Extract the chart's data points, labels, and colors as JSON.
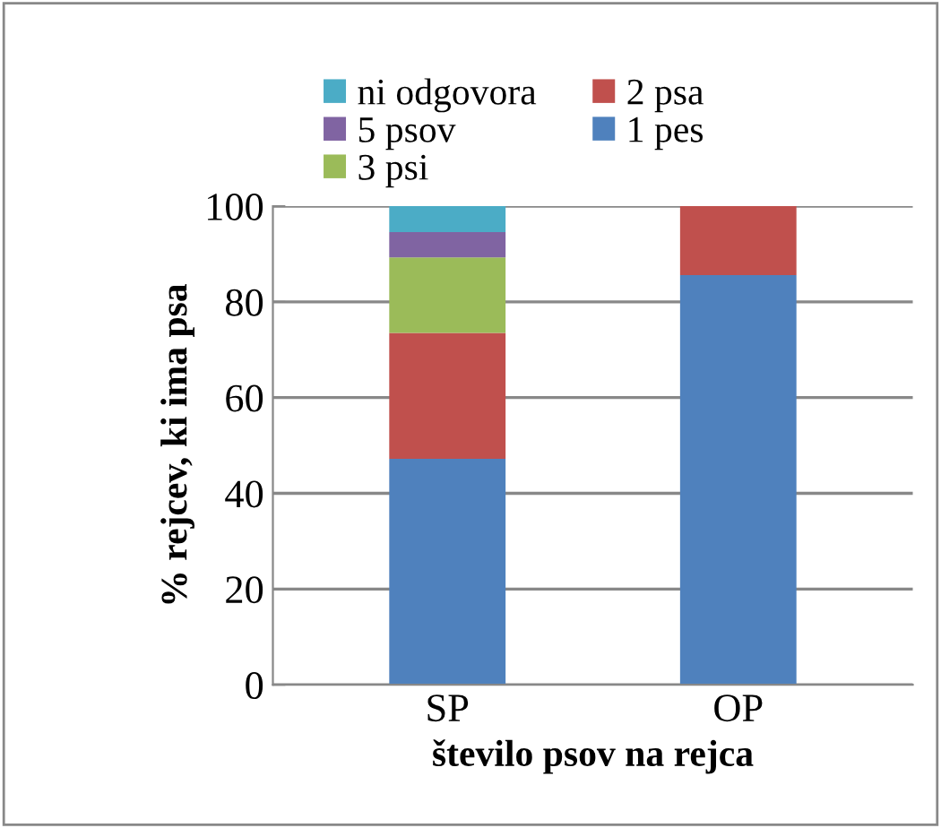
{
  "chart_data": {
    "type": "bar",
    "stacked": true,
    "xlabel": "število psov na rejca",
    "ylabel": "% rejcev, ki ima psa",
    "categories": [
      "SP",
      "OP"
    ],
    "series": [
      {
        "name": "1 pes",
        "color": "#4f81bd",
        "values": [
          47.2,
          85.6
        ]
      },
      {
        "name": "2 psa",
        "color": "#c0504d",
        "values": [
          26.3,
          14.4
        ]
      },
      {
        "name": "3 psi",
        "color": "#9bbb59",
        "values": [
          15.8,
          null
        ]
      },
      {
        "name": "5 psov",
        "color": "#8064a2",
        "values": [
          5.3,
          null
        ]
      },
      {
        "name": "ni odgovora",
        "color": "#4bacc6",
        "values": [
          5.4,
          null
        ]
      }
    ],
    "ylim": [
      0,
      100
    ],
    "yticks": [
      0,
      20,
      40,
      60,
      80,
      100
    ],
    "grid": "y",
    "legend": "top"
  }
}
